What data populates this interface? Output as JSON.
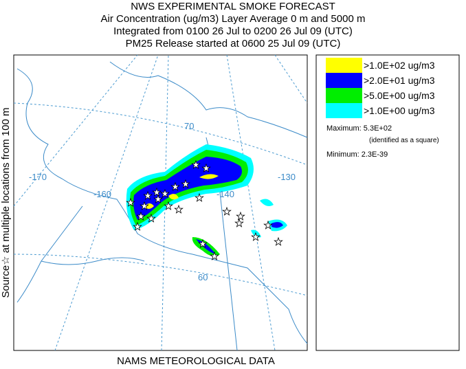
{
  "header": {
    "title": "NWS EXPERIMENTAL SMOKE FORECAST",
    "lines": [
      "Air Concentration (ug/m3) Layer Average    0 m and  5000 m",
      "Integrated from 0100 26 Jul to 0200 26 Jul 09 (UTC)",
      "PM25 Release started at 0600 25 Jul 09 (UTC)"
    ]
  },
  "side_label": "Source☆ at multiple locations from  100 m",
  "footer": "NAMS METEOROLOGICAL DATA",
  "map": {
    "grid_labels": [
      "-170",
      "-160",
      "-140",
      "-130",
      "70",
      "60"
    ]
  },
  "legend": {
    "entries": [
      {
        "label": ">1.0E+02 ug/m3",
        "color": "#ffff00"
      },
      {
        "label": ">2.0E+01 ug/m3",
        "color": "#0000ff"
      },
      {
        "label": ">5.0E+00 ug/m3",
        "color": "#00ee00"
      },
      {
        "label": ">1.0E+00 ug/m3",
        "color": "#00ffff"
      }
    ],
    "maximum": "Maximum: 5.3E+02",
    "maximum_note": "(identified as a square)",
    "minimum": "Minimum: 2.3E-39"
  }
}
